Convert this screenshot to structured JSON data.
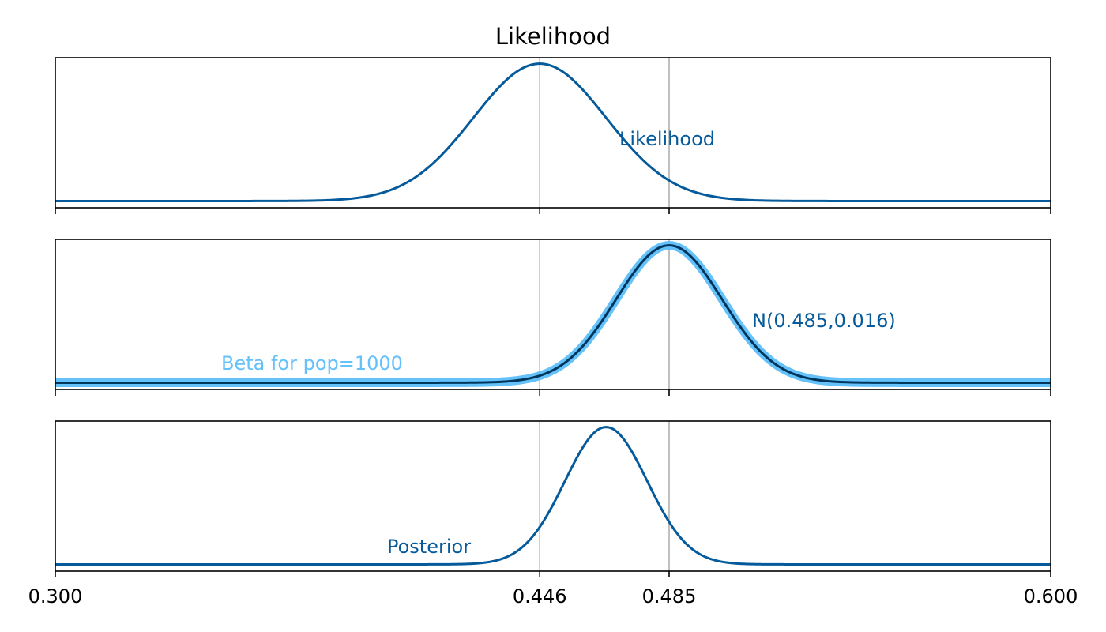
{
  "chart_data": [
    {
      "type": "line",
      "title": "Likelihood",
      "xlim": [
        0.3,
        0.6
      ],
      "grid_x": [
        0.446,
        0.485
      ],
      "series": [
        {
          "color": "#045a9a",
          "kind": "normal",
          "mean": 0.446,
          "sd": 0.02
        }
      ],
      "annotations": [
        {
          "text": "Likelihood",
          "x": 0.47,
          "y": 0.45,
          "color": "#045a9a"
        }
      ]
    },
    {
      "type": "line",
      "title": "",
      "xlim": [
        0.3,
        0.6
      ],
      "grid_x": [
        0.446,
        0.485
      ],
      "series": [
        {
          "name": "Beta for pop=1000",
          "color": "#64c1fa",
          "kind": "normal",
          "mean": 0.485,
          "sd": 0.016,
          "width": "thick"
        },
        {
          "name": "N(0.485,0.016)",
          "color": "#00365c",
          "kind": "normal",
          "mean": 0.485,
          "sd": 0.016,
          "width": "thin"
        }
      ],
      "annotations": [
        {
          "text": "N(0.485,0.016)",
          "x": 0.51,
          "y": 0.45,
          "color": "#045a9a"
        },
        {
          "text": "Beta for pop=1000",
          "x": 0.35,
          "y": 0.14,
          "color": "#64c1fa"
        }
      ]
    },
    {
      "type": "line",
      "title": "",
      "xlim": [
        0.3,
        0.6
      ],
      "grid_x": [
        0.446,
        0.485
      ],
      "xticks": [
        "0.300",
        "0.446",
        "0.485",
        "0.600"
      ],
      "series": [
        {
          "name": "Posterior",
          "color": "#045a9a",
          "kind": "normal",
          "mean": 0.466,
          "sd": 0.0124
        }
      ],
      "annotations": [
        {
          "text": "Posterior",
          "x": 0.4,
          "y": 0.13,
          "color": "#045a9a"
        }
      ]
    }
  ]
}
